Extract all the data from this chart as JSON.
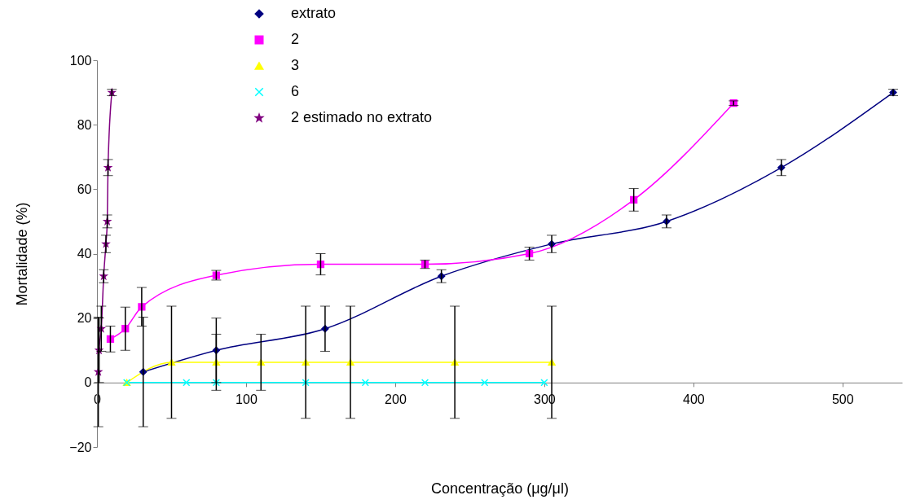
{
  "chart_data": {
    "type": "line",
    "xlabel": "Concentração (μg/μl)",
    "ylabel": "Mortalidade (%)",
    "xlim": [
      0,
      540
    ],
    "xticks": [
      0,
      100,
      200,
      300,
      400,
      500
    ],
    "ylim": [
      -20,
      100
    ],
    "yticks": [
      -20,
      0,
      20,
      40,
      60,
      80,
      100
    ],
    "grid": false,
    "legend": "top",
    "line_style": "solid",
    "series": [
      {
        "name": "extrato",
        "color": "#000080",
        "marker": "diamond",
        "x": [
          31,
          80,
          153,
          231,
          305,
          382,
          459,
          534
        ],
        "values": [
          3.3,
          10,
          16.7,
          33,
          43,
          50,
          66.7,
          90
        ],
        "errors": [
          17,
          10,
          7,
          2,
          2.7,
          2,
          2.5,
          1
        ]
      },
      {
        "name": "2",
        "color": "#ff00ff",
        "marker": "square",
        "x": [
          9,
          19,
          30,
          80,
          150,
          220,
          290,
          360,
          427
        ],
        "values": [
          13.5,
          16.7,
          23.5,
          33.3,
          36.7,
          36.7,
          40,
          56.7,
          86.7
        ],
        "errors": [
          4,
          6.7,
          6,
          1.5,
          3.3,
          1.3,
          2,
          3.5,
          0.7
        ]
      },
      {
        "name": "3",
        "color": "#ffff00",
        "marker": "triangle",
        "x": [
          20,
          50,
          80,
          110,
          140,
          170,
          240,
          305
        ],
        "values": [
          0,
          6.3,
          6.3,
          6.3,
          6.3,
          6.3,
          6.3,
          6.3
        ],
        "errors": [
          null,
          17.4,
          8.7,
          8.7,
          17.4,
          17.4,
          17.4,
          17.4
        ]
      },
      {
        "name": "6",
        "color": "#00ffff",
        "marker": "cross",
        "x": [
          20,
          60,
          80,
          140,
          180,
          220,
          260,
          300
        ],
        "values": [
          0,
          0,
          0,
          0,
          0,
          0,
          0,
          0
        ]
      },
      {
        "name": "2 estimado no extrato",
        "color": "#800080",
        "marker": "star",
        "x": [
          0.9,
          1.4,
          2.9,
          4.5,
          6,
          6.9,
          7.4,
          10
        ],
        "values": [
          3.3,
          10,
          16.7,
          33,
          43,
          50,
          66.7,
          90
        ],
        "errors": [
          17,
          10,
          7,
          2,
          2.7,
          2,
          2.5,
          1
        ]
      }
    ]
  }
}
